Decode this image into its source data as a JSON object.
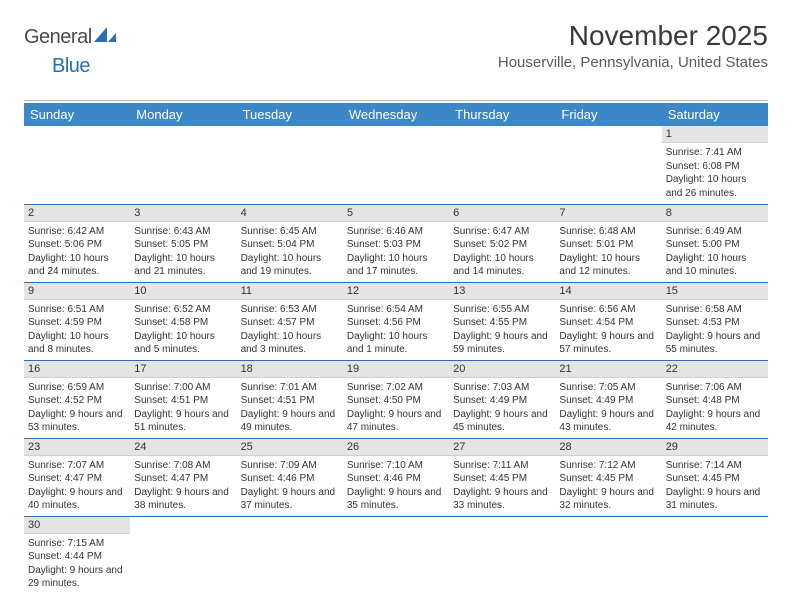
{
  "logo": {
    "text1": "General",
    "text2": "Blue"
  },
  "title": "November 2025",
  "location": "Houserville, Pennsylvania, United States",
  "colors": {
    "header_bg": "#3b87c8",
    "header_text": "#ffffff",
    "rule": "#2a6fb5",
    "daynum_bg": "#e4e4e4",
    "logo_blue": "#2a6fb5"
  },
  "day_headers": [
    "Sunday",
    "Monday",
    "Tuesday",
    "Wednesday",
    "Thursday",
    "Friday",
    "Saturday"
  ],
  "weeks": [
    [
      {
        "n": "",
        "sun": "",
        "set": "",
        "day": ""
      },
      {
        "n": "",
        "sun": "",
        "set": "",
        "day": ""
      },
      {
        "n": "",
        "sun": "",
        "set": "",
        "day": ""
      },
      {
        "n": "",
        "sun": "",
        "set": "",
        "day": ""
      },
      {
        "n": "",
        "sun": "",
        "set": "",
        "day": ""
      },
      {
        "n": "",
        "sun": "",
        "set": "",
        "day": ""
      },
      {
        "n": "1",
        "sun": "Sunrise: 7:41 AM",
        "set": "Sunset: 6:08 PM",
        "day": "Daylight: 10 hours and 26 minutes."
      }
    ],
    [
      {
        "n": "2",
        "sun": "Sunrise: 6:42 AM",
        "set": "Sunset: 5:06 PM",
        "day": "Daylight: 10 hours and 24 minutes."
      },
      {
        "n": "3",
        "sun": "Sunrise: 6:43 AM",
        "set": "Sunset: 5:05 PM",
        "day": "Daylight: 10 hours and 21 minutes."
      },
      {
        "n": "4",
        "sun": "Sunrise: 6:45 AM",
        "set": "Sunset: 5:04 PM",
        "day": "Daylight: 10 hours and 19 minutes."
      },
      {
        "n": "5",
        "sun": "Sunrise: 6:46 AM",
        "set": "Sunset: 5:03 PM",
        "day": "Daylight: 10 hours and 17 minutes."
      },
      {
        "n": "6",
        "sun": "Sunrise: 6:47 AM",
        "set": "Sunset: 5:02 PM",
        "day": "Daylight: 10 hours and 14 minutes."
      },
      {
        "n": "7",
        "sun": "Sunrise: 6:48 AM",
        "set": "Sunset: 5:01 PM",
        "day": "Daylight: 10 hours and 12 minutes."
      },
      {
        "n": "8",
        "sun": "Sunrise: 6:49 AM",
        "set": "Sunset: 5:00 PM",
        "day": "Daylight: 10 hours and 10 minutes."
      }
    ],
    [
      {
        "n": "9",
        "sun": "Sunrise: 6:51 AM",
        "set": "Sunset: 4:59 PM",
        "day": "Daylight: 10 hours and 8 minutes."
      },
      {
        "n": "10",
        "sun": "Sunrise: 6:52 AM",
        "set": "Sunset: 4:58 PM",
        "day": "Daylight: 10 hours and 5 minutes."
      },
      {
        "n": "11",
        "sun": "Sunrise: 6:53 AM",
        "set": "Sunset: 4:57 PM",
        "day": "Daylight: 10 hours and 3 minutes."
      },
      {
        "n": "12",
        "sun": "Sunrise: 6:54 AM",
        "set": "Sunset: 4:56 PM",
        "day": "Daylight: 10 hours and 1 minute."
      },
      {
        "n": "13",
        "sun": "Sunrise: 6:55 AM",
        "set": "Sunset: 4:55 PM",
        "day": "Daylight: 9 hours and 59 minutes."
      },
      {
        "n": "14",
        "sun": "Sunrise: 6:56 AM",
        "set": "Sunset: 4:54 PM",
        "day": "Daylight: 9 hours and 57 minutes."
      },
      {
        "n": "15",
        "sun": "Sunrise: 6:58 AM",
        "set": "Sunset: 4:53 PM",
        "day": "Daylight: 9 hours and 55 minutes."
      }
    ],
    [
      {
        "n": "16",
        "sun": "Sunrise: 6:59 AM",
        "set": "Sunset: 4:52 PM",
        "day": "Daylight: 9 hours and 53 minutes."
      },
      {
        "n": "17",
        "sun": "Sunrise: 7:00 AM",
        "set": "Sunset: 4:51 PM",
        "day": "Daylight: 9 hours and 51 minutes."
      },
      {
        "n": "18",
        "sun": "Sunrise: 7:01 AM",
        "set": "Sunset: 4:51 PM",
        "day": "Daylight: 9 hours and 49 minutes."
      },
      {
        "n": "19",
        "sun": "Sunrise: 7:02 AM",
        "set": "Sunset: 4:50 PM",
        "day": "Daylight: 9 hours and 47 minutes."
      },
      {
        "n": "20",
        "sun": "Sunrise: 7:03 AM",
        "set": "Sunset: 4:49 PM",
        "day": "Daylight: 9 hours and 45 minutes."
      },
      {
        "n": "21",
        "sun": "Sunrise: 7:05 AM",
        "set": "Sunset: 4:49 PM",
        "day": "Daylight: 9 hours and 43 minutes."
      },
      {
        "n": "22",
        "sun": "Sunrise: 7:06 AM",
        "set": "Sunset: 4:48 PM",
        "day": "Daylight: 9 hours and 42 minutes."
      }
    ],
    [
      {
        "n": "23",
        "sun": "Sunrise: 7:07 AM",
        "set": "Sunset: 4:47 PM",
        "day": "Daylight: 9 hours and 40 minutes."
      },
      {
        "n": "24",
        "sun": "Sunrise: 7:08 AM",
        "set": "Sunset: 4:47 PM",
        "day": "Daylight: 9 hours and 38 minutes."
      },
      {
        "n": "25",
        "sun": "Sunrise: 7:09 AM",
        "set": "Sunset: 4:46 PM",
        "day": "Daylight: 9 hours and 37 minutes."
      },
      {
        "n": "26",
        "sun": "Sunrise: 7:10 AM",
        "set": "Sunset: 4:46 PM",
        "day": "Daylight: 9 hours and 35 minutes."
      },
      {
        "n": "27",
        "sun": "Sunrise: 7:11 AM",
        "set": "Sunset: 4:45 PM",
        "day": "Daylight: 9 hours and 33 minutes."
      },
      {
        "n": "28",
        "sun": "Sunrise: 7:12 AM",
        "set": "Sunset: 4:45 PM",
        "day": "Daylight: 9 hours and 32 minutes."
      },
      {
        "n": "29",
        "sun": "Sunrise: 7:14 AM",
        "set": "Sunset: 4:45 PM",
        "day": "Daylight: 9 hours and 31 minutes."
      }
    ],
    [
      {
        "n": "30",
        "sun": "Sunrise: 7:15 AM",
        "set": "Sunset: 4:44 PM",
        "day": "Daylight: 9 hours and 29 minutes."
      },
      {
        "n": "",
        "sun": "",
        "set": "",
        "day": ""
      },
      {
        "n": "",
        "sun": "",
        "set": "",
        "day": ""
      },
      {
        "n": "",
        "sun": "",
        "set": "",
        "day": ""
      },
      {
        "n": "",
        "sun": "",
        "set": "",
        "day": ""
      },
      {
        "n": "",
        "sun": "",
        "set": "",
        "day": ""
      },
      {
        "n": "",
        "sun": "",
        "set": "",
        "day": ""
      }
    ]
  ]
}
